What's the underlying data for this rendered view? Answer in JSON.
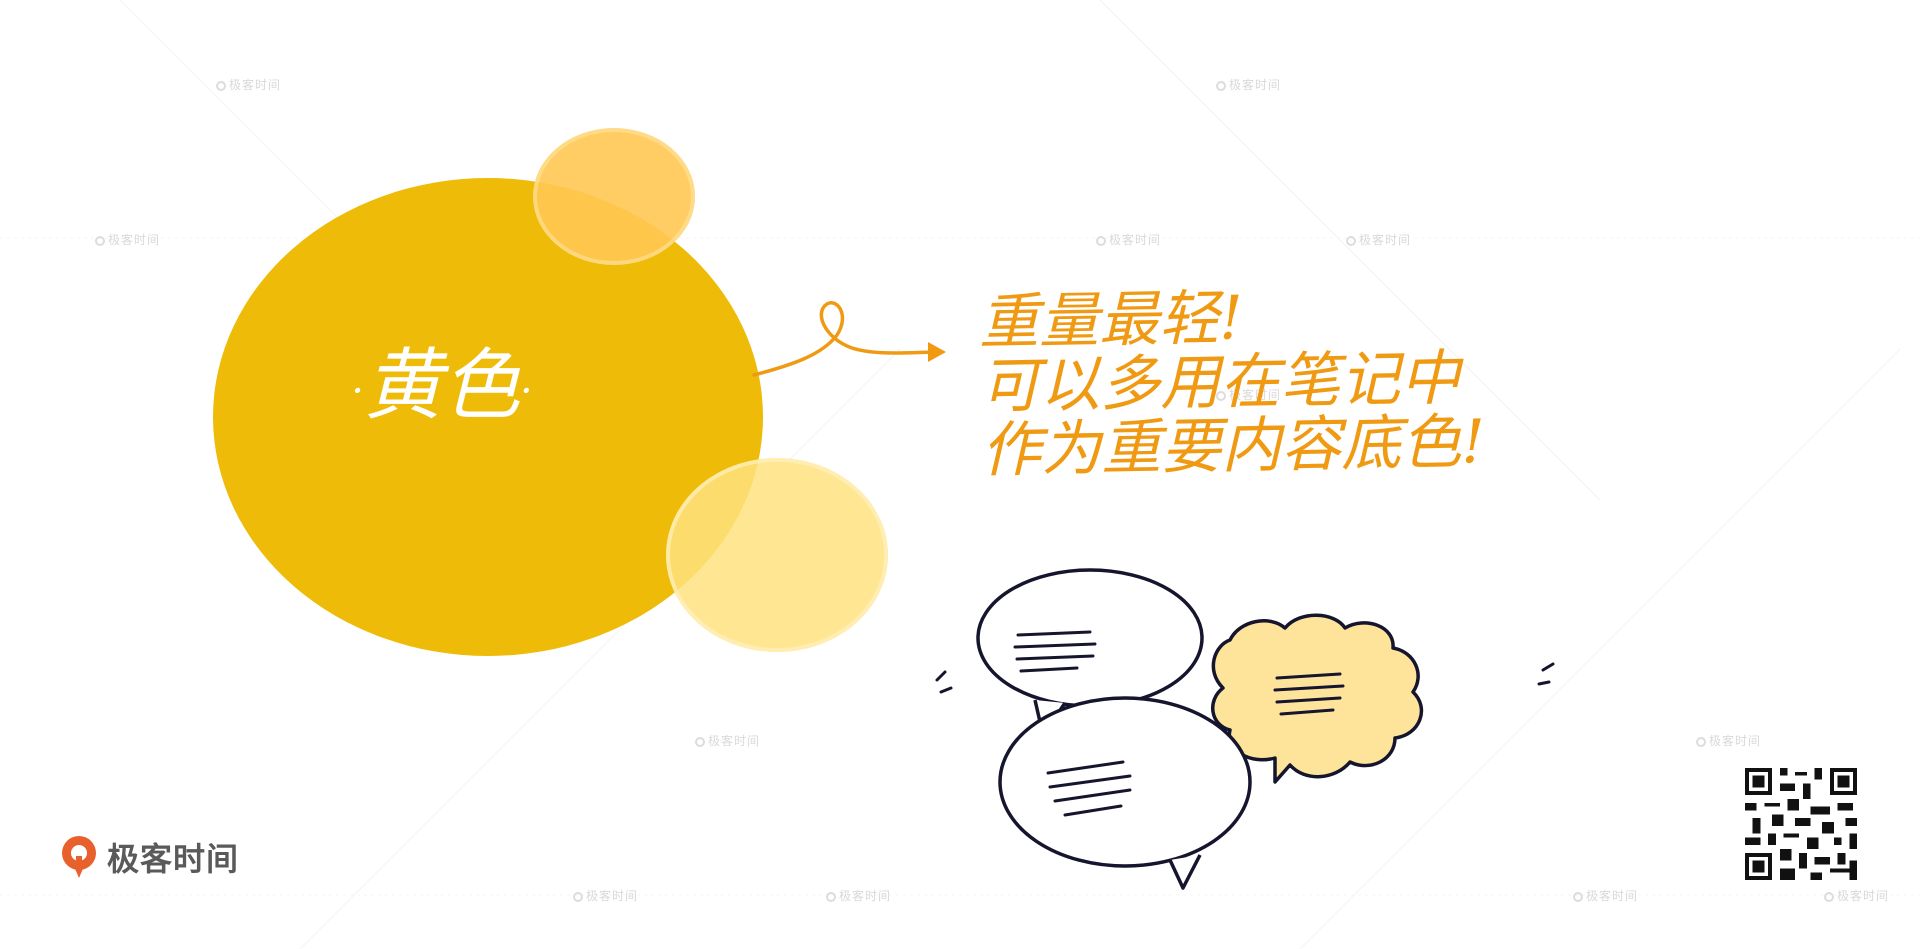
{
  "circle": {
    "title": "黄色",
    "dot_left": "·",
    "dot_right": "·"
  },
  "note": {
    "lines": [
      "重量最轻!",
      "可以多用在笔记中",
      "作为重要内容底色!"
    ]
  },
  "logo": {
    "text": "极客时间"
  },
  "watermark": {
    "text": "极客时间"
  },
  "colors": {
    "main_yellow": "#eebb08",
    "light_yellow": "#ffc852",
    "pale_yellow": "#ffe280",
    "note_orange": "#ef9a12",
    "logo_orange": "#e8612c",
    "ink": "#15152e"
  },
  "icons": [
    "loop-arrow-icon",
    "speech-bubbles-icon",
    "geektime-logo-icon",
    "qr-code-icon"
  ]
}
